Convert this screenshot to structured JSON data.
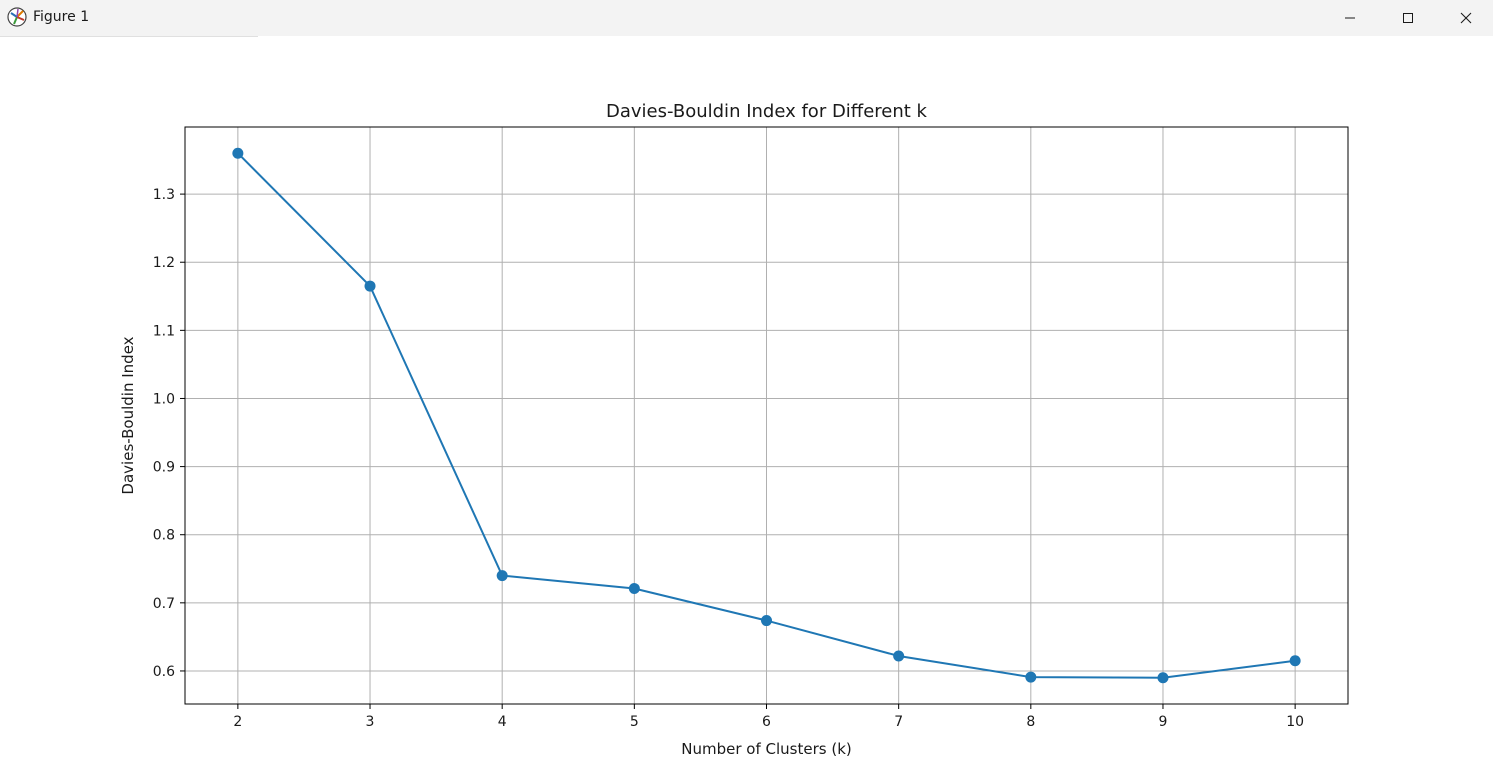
{
  "window": {
    "title": "Figure 1",
    "icon": "matplotlib-logo-icon",
    "controls": [
      "minimize-icon",
      "maximize-icon",
      "close-icon"
    ]
  },
  "chart_data": {
    "type": "line",
    "title": "Davies-Bouldin Index for Different k",
    "xlabel": "Number of Clusters (k)",
    "ylabel": "Davies-Bouldin Index",
    "x": [
      2,
      3,
      4,
      5,
      6,
      7,
      8,
      9,
      10
    ],
    "series": [
      {
        "values": [
          1.36,
          1.165,
          0.74,
          0.721,
          0.674,
          0.622,
          0.591,
          0.59,
          0.615
        ],
        "color": "#1f77b4",
        "marker": "circle"
      }
    ],
    "xticks": [
      "2",
      "3",
      "4",
      "5",
      "6",
      "7",
      "8",
      "9",
      "10"
    ],
    "yticks": [
      "0.6",
      "0.7",
      "0.8",
      "0.9",
      "1.0",
      "1.1",
      "1.2",
      "1.3"
    ],
    "xlim": [
      1.6,
      10.4
    ],
    "ylim": [
      0.5515,
      1.3985
    ],
    "grid": true,
    "colors": {
      "line": "#1f77b4",
      "grid": "#b0b0b0",
      "axes": "#000000"
    }
  }
}
